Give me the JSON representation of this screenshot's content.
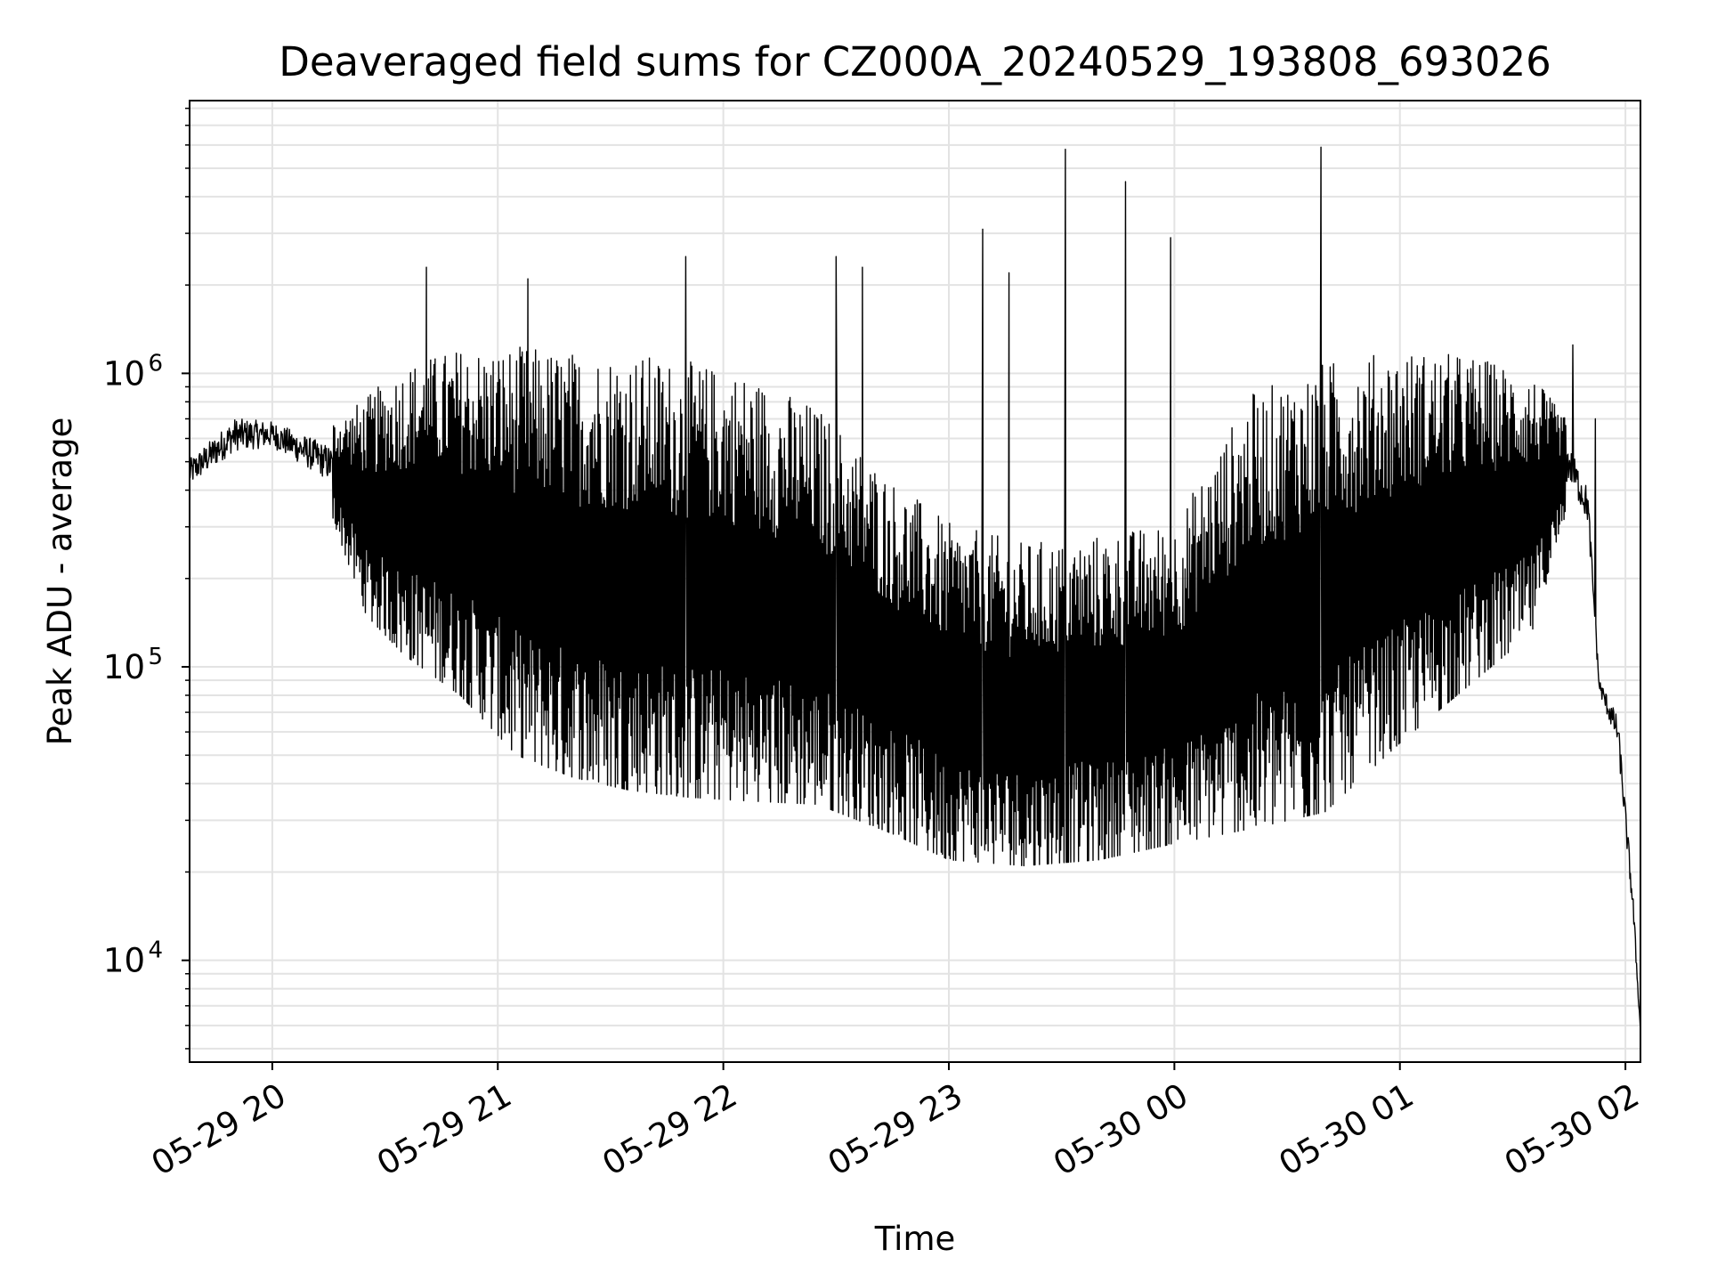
{
  "chart_data": {
    "type": "line",
    "title": "Deaveraged field sums for CZ000A_20240529_193808_693026",
    "xlabel": "Time",
    "ylabel": "Peak ADU - average",
    "yscale": "log",
    "ylim": [
      4500,
      8500000
    ],
    "xlim": [
      "2024-05-29 19:38",
      "2024-05-30 02:04"
    ],
    "grid": true,
    "line_color": "#000000",
    "x_ticks": [
      {
        "value": "2024-05-29 20:00",
        "label": "05-29 20"
      },
      {
        "value": "2024-05-29 21:00",
        "label": "05-29 21"
      },
      {
        "value": "2024-05-29 22:00",
        "label": "05-29 22"
      },
      {
        "value": "2024-05-29 23:00",
        "label": "05-29 23"
      },
      {
        "value": "2024-05-30 00:00",
        "label": "05-30 00"
      },
      {
        "value": "2024-05-30 01:00",
        "label": "05-30 01"
      },
      {
        "value": "2024-05-30 02:00",
        "label": "05-30 02"
      }
    ],
    "y_ticks": [
      {
        "value": 10000,
        "base": "10",
        "exp": "4"
      },
      {
        "value": 100000,
        "base": "10",
        "exp": "5"
      },
      {
        "value": 1000000,
        "base": "10",
        "exp": "6"
      }
    ],
    "series": [
      {
        "envelope": [
          {
            "x": "2024-05-29 19:38",
            "upper": 600000,
            "lower": 350000
          },
          {
            "x": "2024-05-29 19:50",
            "upper": 850000,
            "lower": 450000
          },
          {
            "x": "2024-05-29 20:00",
            "upper": 800000,
            "lower": 480000
          },
          {
            "x": "2024-05-29 20:15",
            "upper": 700000,
            "lower": 350000
          },
          {
            "x": "2024-05-29 20:25",
            "upper": 900000,
            "lower": 150000
          },
          {
            "x": "2024-05-29 20:35",
            "upper": 1200000,
            "lower": 110000
          },
          {
            "x": "2024-05-29 20:50",
            "upper": 1400000,
            "lower": 80000
          },
          {
            "x": "2024-05-29 21:05",
            "upper": 1450000,
            "lower": 50000
          },
          {
            "x": "2024-05-29 21:20",
            "upper": 1400000,
            "lower": 42000
          },
          {
            "x": "2024-05-29 21:35",
            "upper": 1400000,
            "lower": 38000
          },
          {
            "x": "2024-05-29 21:50",
            "upper": 1300000,
            "lower": 36000
          },
          {
            "x": "2024-05-29 22:05",
            "upper": 1200000,
            "lower": 35000
          },
          {
            "x": "2024-05-29 22:25",
            "upper": 900000,
            "lower": 34000
          },
          {
            "x": "2024-05-29 22:45",
            "upper": 500000,
            "lower": 27000
          },
          {
            "x": "2024-05-29 23:00",
            "upper": 350000,
            "lower": 22000
          },
          {
            "x": "2024-05-29 23:20",
            "upper": 300000,
            "lower": 21000
          },
          {
            "x": "2024-05-29 23:40",
            "upper": 320000,
            "lower": 22000
          },
          {
            "x": "2024-05-30 00:00",
            "upper": 350000,
            "lower": 25000
          },
          {
            "x": "2024-05-30 00:20",
            "upper": 1000000,
            "lower": 28000
          },
          {
            "x": "2024-05-30 00:40",
            "upper": 1300000,
            "lower": 32000
          },
          {
            "x": "2024-05-30 01:00",
            "upper": 1400000,
            "lower": 55000
          },
          {
            "x": "2024-05-30 01:20",
            "upper": 1300000,
            "lower": 90000
          },
          {
            "x": "2024-05-30 01:35",
            "upper": 1100000,
            "lower": 130000
          },
          {
            "x": "2024-05-30 01:45",
            "upper": 700000,
            "lower": 350000
          },
          {
            "x": "2024-05-30 01:50",
            "upper": 500000,
            "lower": 250000
          },
          {
            "x": "2024-05-30 01:53",
            "upper": 100000,
            "lower": 75000
          },
          {
            "x": "2024-05-30 01:58",
            "upper": 80000,
            "lower": 45000
          },
          {
            "x": "2024-05-30 02:02",
            "upper": 20000,
            "lower": 12000
          },
          {
            "x": "2024-05-30 02:04",
            "upper": 6000,
            "lower": 5500
          }
        ],
        "spikes": [
          {
            "x": "2024-05-29 20:41",
            "y": 2300000
          },
          {
            "x": "2024-05-29 21:08",
            "y": 2100000
          },
          {
            "x": "2024-05-29 21:50",
            "y": 2500000
          },
          {
            "x": "2024-05-29 22:30",
            "y": 2500000
          },
          {
            "x": "2024-05-29 22:37",
            "y": 2300000
          },
          {
            "x": "2024-05-29 23:09",
            "y": 3100000
          },
          {
            "x": "2024-05-29 23:16",
            "y": 2200000
          },
          {
            "x": "2024-05-29 23:31",
            "y": 5800000
          },
          {
            "x": "2024-05-29 23:47",
            "y": 4500000
          },
          {
            "x": "2024-05-29 23:59",
            "y": 2900000
          },
          {
            "x": "2024-05-30 00:39",
            "y": 5900000
          },
          {
            "x": "2024-05-30 01:46",
            "y": 1250000
          },
          {
            "x": "2024-05-30 01:52",
            "y": 700000
          }
        ]
      }
    ]
  }
}
